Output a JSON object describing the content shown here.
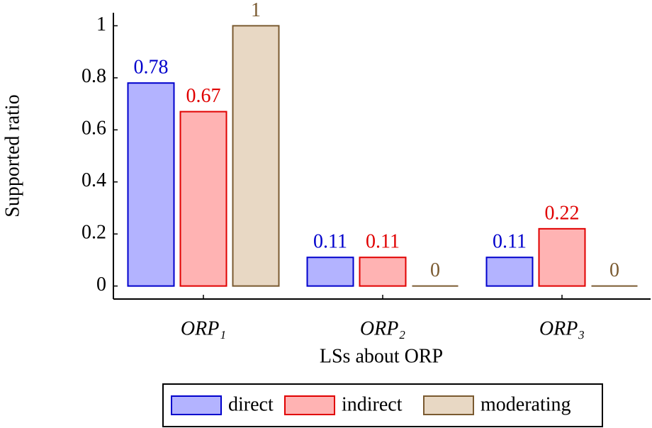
{
  "chart_data": {
    "type": "bar",
    "x_label": "LSs about ORP",
    "y_label": "Supported ratio",
    "categories": [
      "ORP₁",
      "ORP₂",
      "ORP₃"
    ],
    "series": [
      {
        "name": "direct",
        "color": "#0000cc",
        "fill": "#b3b3ff",
        "values": [
          0.78,
          0.11,
          0.11
        ]
      },
      {
        "name": "indirect",
        "color": "#e00000",
        "fill": "#ffb3b3",
        "values": [
          0.67,
          0.11,
          0.22
        ]
      },
      {
        "name": "moderating",
        "color": "#7a5a30",
        "fill": "#e8d8c4",
        "values": [
          1,
          0,
          0
        ]
      }
    ],
    "ylim": [
      -0.05,
      1.05
    ],
    "yticks": [
      0,
      0.2,
      0.4,
      0.6,
      0.8,
      1
    ],
    "legend": "bottom"
  }
}
